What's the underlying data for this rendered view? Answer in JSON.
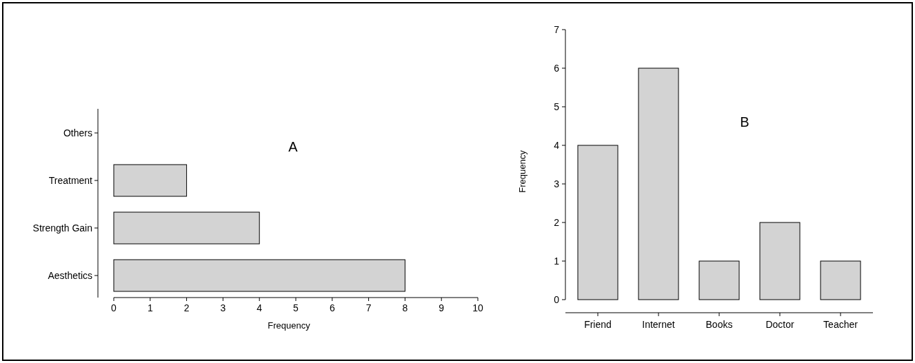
{
  "chart_data": [
    {
      "type": "bar",
      "orientation": "horizontal",
      "categories": [
        "Others",
        "Treatment",
        "Strength Gain",
        "Aesthetics"
      ],
      "values": [
        0,
        2,
        4,
        8
      ],
      "color": "#d3d3d3",
      "xlim": [
        0,
        10
      ],
      "xticks": [
        0,
        1,
        2,
        3,
        4,
        5,
        6,
        7,
        8,
        9,
        10
      ],
      "xlabel": "Frequency",
      "annotations": [
        "A"
      ]
    },
    {
      "type": "bar",
      "categories": [
        "Friend",
        "Internet",
        "Books",
        "Doctor",
        "Teacher"
      ],
      "values": [
        4,
        6,
        1,
        2,
        1
      ],
      "color": "#d3d3d3",
      "ylim": [
        0,
        7
      ],
      "yticks": [
        0,
        1,
        2,
        3,
        4,
        5,
        6,
        7
      ],
      "ylabel": "Frequency",
      "annotations": [
        "B"
      ]
    }
  ]
}
